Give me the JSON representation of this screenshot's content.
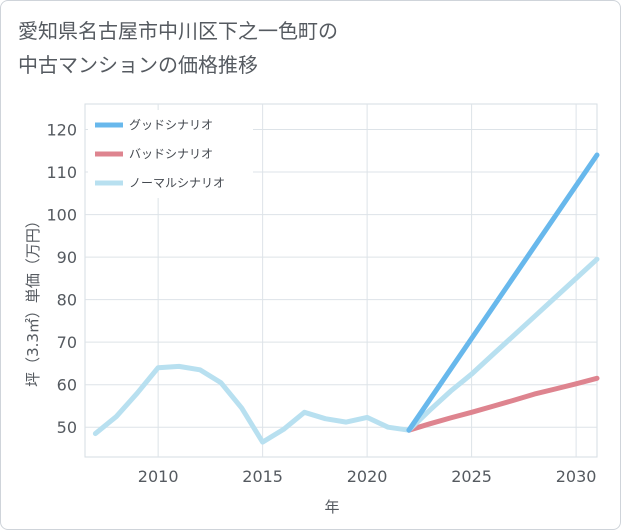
{
  "chart_data": {
    "type": "line",
    "title_line1": "愛知県名古屋市中川区下之一色町の",
    "title_line2": "中古マンションの価格推移",
    "xlabel": "年",
    "ylabel": "坪（3.3㎡）単価（万円）",
    "xlim": [
      2006.5,
      2031
    ],
    "ylim": [
      43,
      126
    ],
    "xticks": [
      2010,
      2015,
      2020,
      2025,
      2030
    ],
    "yticks": [
      50,
      60,
      70,
      80,
      90,
      100,
      110,
      120
    ],
    "series": [
      {
        "name": "グッドシナリオ",
        "color": "#68b8ec",
        "x": [
          2022,
          2031
        ],
        "y": [
          49.3,
          114
        ]
      },
      {
        "name": "バッドシナリオ",
        "color": "#de848f",
        "x": [
          2022,
          2023,
          2024,
          2025,
          2026,
          2027,
          2028,
          2029,
          2030,
          2031
        ],
        "y": [
          49.3,
          50.8,
          52.2,
          53.5,
          54.9,
          56.3,
          57.8,
          59.0,
          60.2,
          61.5
        ]
      },
      {
        "name": "ノーマルシナリオ",
        "color": "#b8e0f0",
        "x": [
          2007,
          2008,
          2009,
          2010,
          2011,
          2012,
          2013,
          2014,
          2015,
          2016,
          2017,
          2018,
          2019,
          2020,
          2021,
          2022,
          2023,
          2024,
          2025,
          2026,
          2027,
          2028,
          2029,
          2030,
          2031
        ],
        "y": [
          48.5,
          52.5,
          58,
          64,
          64.3,
          63.5,
          60.5,
          54.5,
          46.5,
          49.5,
          53.5,
          52,
          51.2,
          52.3,
          50,
          49.3,
          54,
          58.5,
          62.5,
          67,
          71.5,
          76,
          80.5,
          85,
          89.5
        ]
      }
    ],
    "legend_position": "top-left",
    "grid": true
  }
}
